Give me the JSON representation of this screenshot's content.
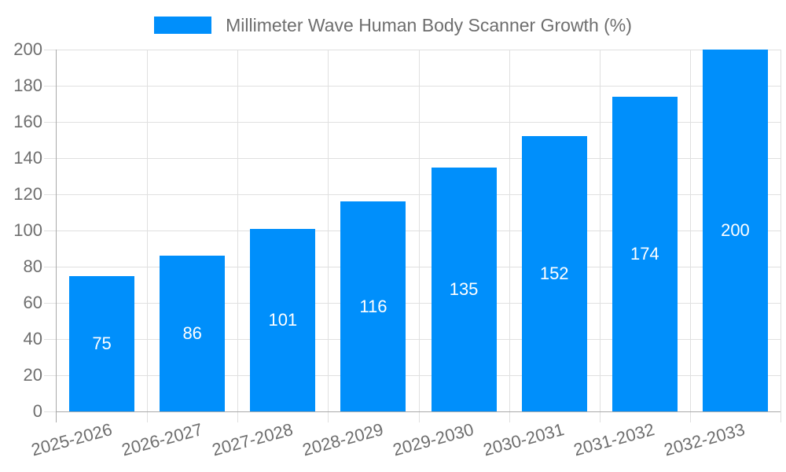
{
  "legend": {
    "position": "top",
    "items": [
      {
        "label": "Millimeter Wave Human Body Scanner Growth (%)",
        "color": "#008FFB"
      }
    ]
  },
  "chart_data": {
    "type": "bar",
    "title": "Millimeter Wave Human Body Scanner Growth (%)",
    "categories": [
      "2025-2026",
      "2026-2027",
      "2027-2028",
      "2028-2029",
      "2029-2030",
      "2030-2031",
      "2031-2032",
      "2032-2033"
    ],
    "values": [
      75,
      86,
      101,
      116,
      135,
      152,
      174,
      200
    ],
    "xlabel": "",
    "ylabel": "",
    "ylim": [
      0,
      200
    ],
    "ytick_step": 20,
    "grid": "on",
    "legend_position": "top",
    "value_label_position": "inside-center"
  },
  "colors": {
    "bar": "#008FFB",
    "grid": "#e0e0e0",
    "axis": "#a9a9a9",
    "text": "#6e6e6e",
    "value_label": "#ffffff",
    "background": "#ffffff"
  }
}
